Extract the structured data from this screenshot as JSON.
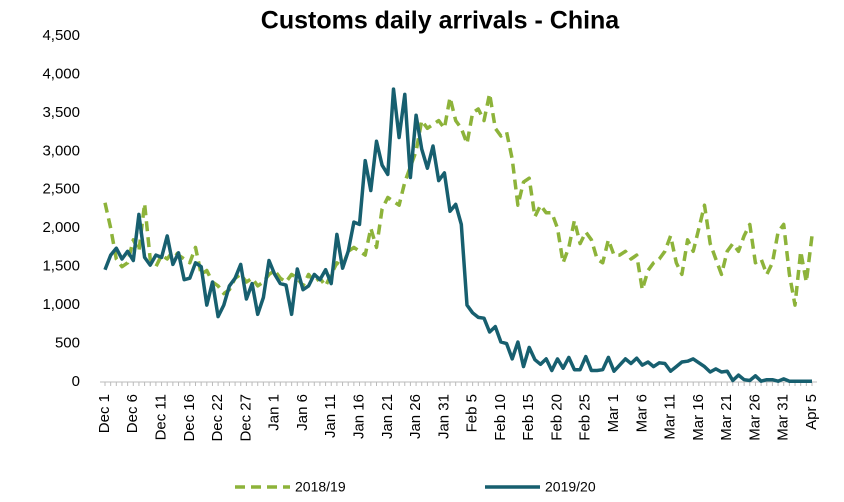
{
  "chart_data": {
    "type": "line",
    "title": "Customs daily arrivals - China",
    "categories": [
      "Dec 1",
      null,
      null,
      null,
      null,
      "Dec 6",
      null,
      null,
      null,
      null,
      "Dec 11",
      null,
      null,
      null,
      null,
      "Dec 16",
      null,
      null,
      null,
      null,
      "Dec 22",
      null,
      null,
      null,
      null,
      "Dec 27",
      null,
      null,
      null,
      null,
      "Jan 1",
      null,
      null,
      null,
      null,
      "Jan 6",
      null,
      null,
      null,
      null,
      "Jan 11",
      null,
      null,
      null,
      null,
      "Jan 16",
      null,
      null,
      null,
      null,
      "Jan 21",
      null,
      null,
      null,
      null,
      "Jan 26",
      null,
      null,
      null,
      null,
      "Jan 31",
      null,
      null,
      null,
      null,
      "Feb 5",
      null,
      null,
      null,
      null,
      "Feb 10",
      null,
      null,
      null,
      null,
      "Feb 15",
      null,
      null,
      null,
      null,
      "Feb 20",
      null,
      null,
      null,
      null,
      "Feb 25",
      null,
      null,
      null,
      null,
      "Mar 1",
      null,
      null,
      null,
      null,
      "Mar 6",
      null,
      null,
      null,
      null,
      "Mar 11",
      null,
      null,
      null,
      null,
      "Mar 16",
      null,
      null,
      null,
      null,
      "Mar 21",
      null,
      null,
      null,
      null,
      "Mar 26",
      null,
      null,
      null,
      null,
      "Mar 31",
      null,
      null,
      null,
      null,
      "Apr 5"
    ],
    "series": [
      {
        "name": "2018/19",
        "color": "#8db33a",
        "dashed": true,
        "values": [
          2330,
          2000,
          1600,
          1500,
          1550,
          1850,
          1700,
          2320,
          1600,
          1500,
          1650,
          1600,
          1700,
          1650,
          1600,
          1550,
          1750,
          1400,
          1450,
          1300,
          1250,
          1150,
          1200,
          1350,
          1400,
          1300,
          1350,
          1250,
          1300,
          1400,
          1450,
          1350,
          1300,
          1400,
          1350,
          1250,
          1400,
          1300,
          1350,
          1250,
          1400,
          1550,
          1500,
          1700,
          1750,
          1700,
          1650,
          2000,
          1750,
          2250,
          2400,
          2350,
          2300,
          2600,
          2800,
          3000,
          3400,
          3300,
          3350,
          3400,
          3300,
          3700,
          3400,
          3300,
          3100,
          3500,
          3550,
          3400,
          3750,
          3300,
          3200,
          3250,
          2900,
          2300,
          2600,
          2650,
          2150,
          2300,
          2200,
          2200,
          2000,
          1550,
          1750,
          2100,
          1800,
          1950,
          1850,
          1600,
          1550,
          1850,
          1650,
          1650,
          1700,
          1600,
          1650,
          1200,
          1450,
          1550,
          1600,
          1700,
          1900,
          1550,
          1400,
          1850,
          1700,
          2000,
          2300,
          1800,
          1600,
          1400,
          1700,
          1800,
          1700,
          1900,
          2050,
          1550,
          1600,
          1400,
          1550,
          1950,
          2050,
          1400,
          1000,
          1700,
          1300,
          1900
        ]
      },
      {
        "name": "2019/20",
        "color": "#175f6f",
        "dashed": false,
        "values": [
          1460,
          1650,
          1740,
          1600,
          1700,
          1580,
          2180,
          1620,
          1520,
          1650,
          1620,
          1900,
          1530,
          1680,
          1330,
          1350,
          1550,
          1500,
          1000,
          1300,
          850,
          1000,
          1250,
          1350,
          1530,
          1080,
          1280,
          880,
          1100,
          1580,
          1400,
          1280,
          1260,
          880,
          1470,
          1200,
          1250,
          1400,
          1330,
          1460,
          1280,
          1920,
          1480,
          1700,
          2080,
          2050,
          2880,
          2490,
          3130,
          2820,
          2700,
          3810,
          3180,
          3740,
          2660,
          3470,
          3030,
          2780,
          3070,
          2620,
          2720,
          2220,
          2310,
          2050,
          1000,
          900,
          840,
          830,
          650,
          720,
          520,
          500,
          300,
          520,
          200,
          450,
          290,
          230,
          300,
          150,
          300,
          180,
          320,
          160,
          160,
          330,
          150,
          150,
          160,
          320,
          140,
          220,
          300,
          240,
          310,
          220,
          260,
          200,
          250,
          240,
          140,
          200,
          260,
          270,
          300,
          250,
          200,
          130,
          170,
          130,
          140,
          20,
          90,
          30,
          20,
          80,
          10,
          30,
          30,
          10,
          40,
          10,
          10,
          10,
          10,
          10
        ]
      }
    ],
    "ylim": [
      0,
      4500
    ],
    "yticks": [
      0,
      500,
      {
        "value": 1000,
        "label": "1,000"
      },
      {
        "value": 1500,
        "label": "1,500"
      },
      {
        "value": 2000,
        "label": "2,000"
      },
      {
        "value": 2500,
        "label": "2,500"
      },
      {
        "value": 3000,
        "label": "3,000"
      },
      {
        "value": 3500,
        "label": "3,500"
      },
      {
        "value": 4000,
        "label": "4,000"
      },
      {
        "value": 4500,
        "label": "4,500"
      }
    ],
    "grid": false,
    "legend": "bottom"
  }
}
